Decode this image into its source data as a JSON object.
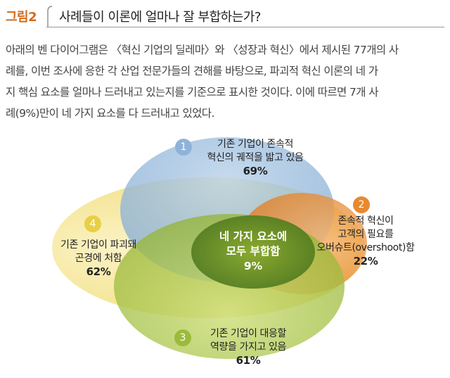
{
  "header": {
    "figure_label": "그림2",
    "title": "사례들이 이론에 얼마나 잘 부합하는가?"
  },
  "description": {
    "lines": [
      "아래의 벤 다이어그램은 〈혁신 기업의 딜레마〉와 〈성장과 혁신〉에서 제시된 77개의 사",
      "례를, 이번 조사에 응한 각 산업 전문가들의 견해를 바탕으로, 파괴적 혁신 이론의 네 가",
      "지 핵심 요소를 얼마나 드러내고 있는지를 기준으로 표시한 것이다. 이에 따르면 7개 사",
      "례(9%)만이 네 가지 요소를 다 드러내고 있었다."
    ]
  },
  "venn": {
    "sets": [
      {
        "number": "1",
        "line1": "기존 기업이 존속적",
        "line2": "혁신의 궤적을 밟고 있음",
        "percent": "69%",
        "color": "#8fb3d8"
      },
      {
        "number": "2",
        "line1": "존속적 혁신이",
        "line2": "고객의 필요를",
        "line3": "오버슈트(overshoot)함",
        "percent": "22%",
        "color": "#e8892f"
      },
      {
        "number": "3",
        "line1": "기존 기업이 대응할",
        "line2": "역량을 가지고 있음",
        "percent": "61%",
        "color": "#9dbb3a"
      },
      {
        "number": "4",
        "line1": "기존 기업이 파괴돼",
        "line2": "곤경에 처함",
        "percent": "62%",
        "color": "#e8cf46"
      }
    ],
    "intersection": {
      "line1": "네 가지 요소에",
      "line2": "모두 부합함",
      "percent": "9%"
    }
  }
}
